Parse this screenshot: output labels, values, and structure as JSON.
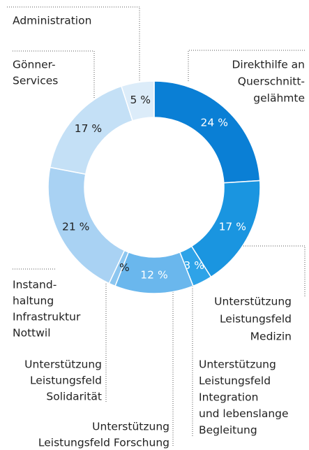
{
  "chart_data": {
    "type": "donut",
    "categories": [
      [
        "Direkthilfe an",
        "Querschnitt-",
        "gelähmte"
      ],
      [
        "Unterstützung",
        "Leistungsfeld",
        "Medizin"
      ],
      [
        "Unterstützung",
        "Leistungsfeld",
        "Integration",
        "und lebenslange",
        "Begleitung"
      ],
      [
        "Unterstützung",
        "Leistungsfeld Forschung"
      ],
      [
        "Unterstützung",
        "Leistungsfeld",
        "Solidarität"
      ],
      [
        "Instand-",
        "haltung",
        "Infrastruktur",
        "Nottwil"
      ],
      [
        "Gönner-",
        "Services"
      ],
      [
        "Administration"
      ]
    ],
    "values": [
      24,
      17,
      3,
      12,
      1,
      21,
      17,
      5
    ],
    "value_labels": [
      "24 %",
      "17 %",
      "3 %",
      "12 %",
      "1 %",
      "21 %",
      "17 %",
      "5 %"
    ],
    "colors": [
      "#0a7fd5",
      "#1a95e0",
      "#2ea3e8",
      "#6ab7ed",
      "#8cc6f0",
      "#a9d2f3",
      "#c4e0f6",
      "#dcecf9"
    ]
  }
}
